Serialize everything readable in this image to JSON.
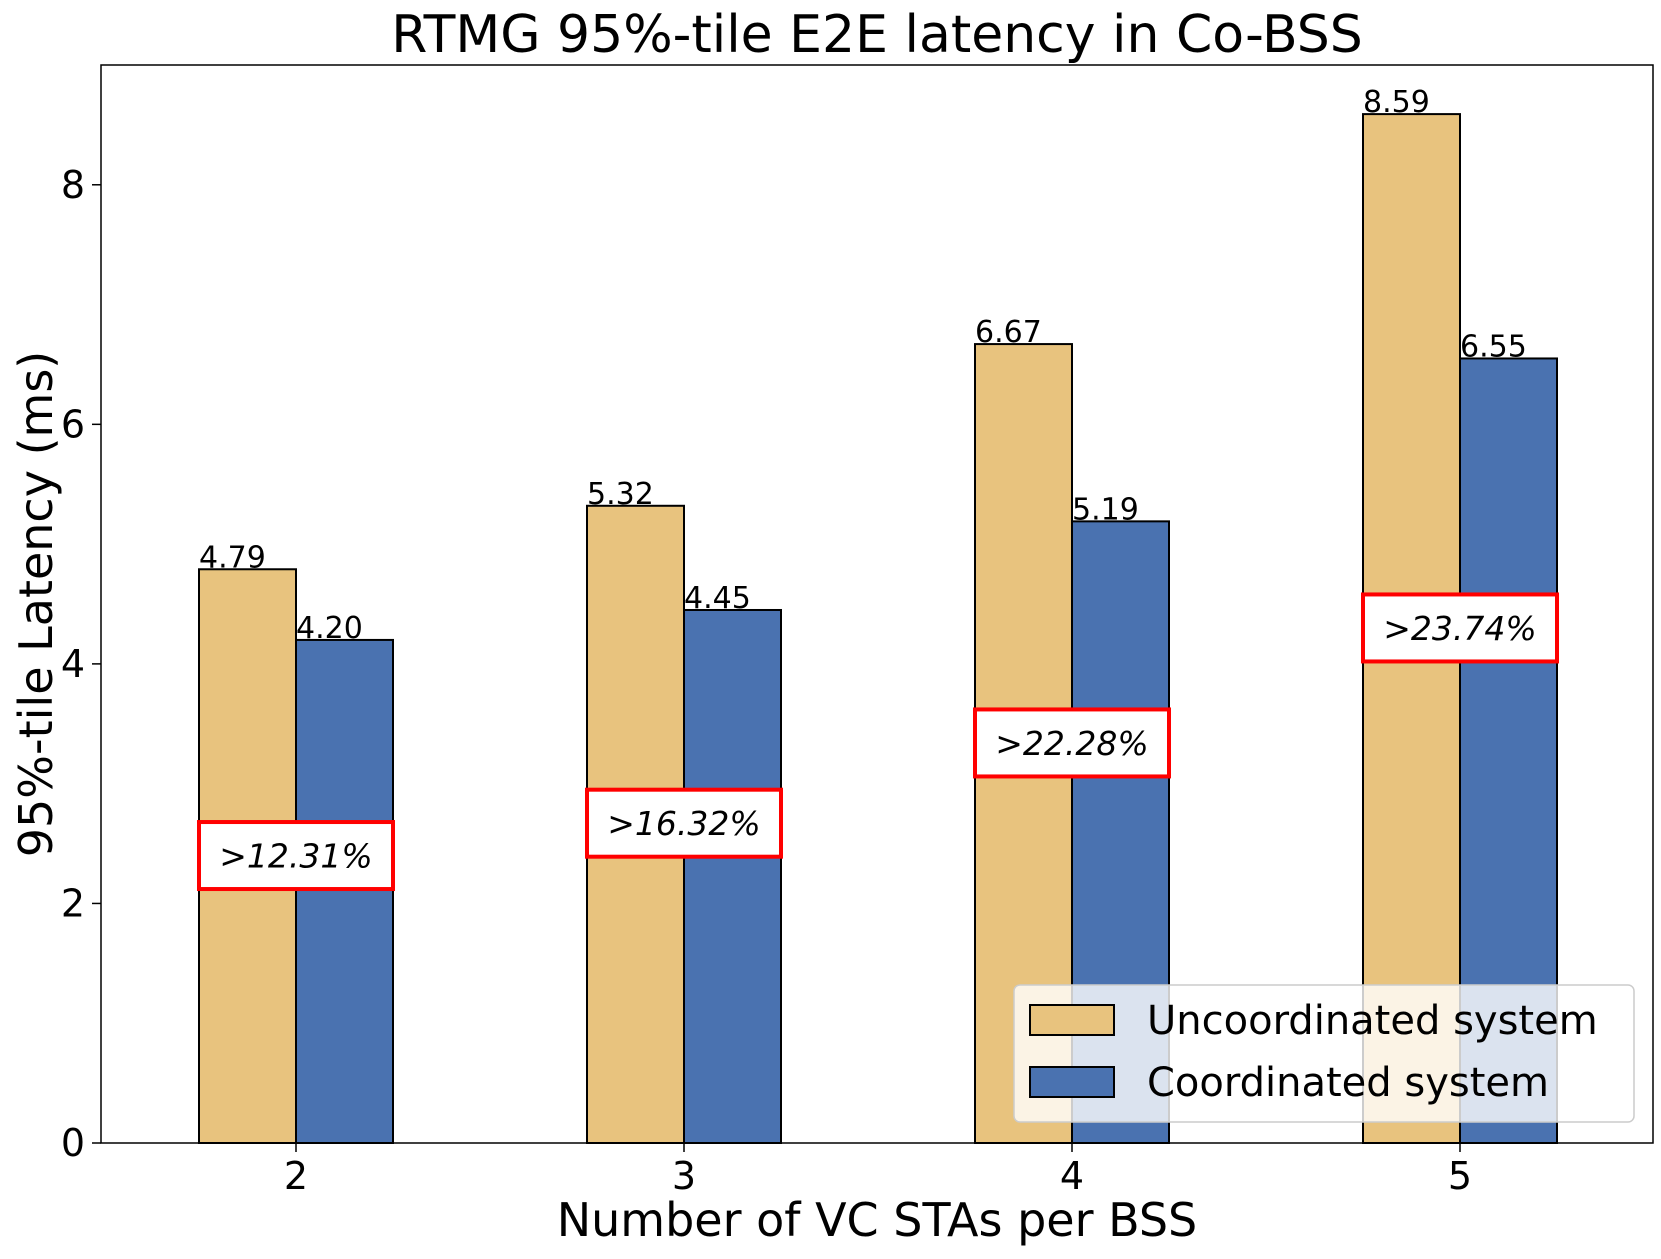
{
  "chart_data": {
    "type": "bar",
    "title": "RTMG 95%-tile E2E latency in Co-BSS",
    "xlabel": "Number of VC STAs per BSS",
    "ylabel": "95%-tile Latency (ms)",
    "categories": [
      "2",
      "3",
      "4",
      "5"
    ],
    "ylim": [
      0,
      9
    ],
    "yticks": [
      0,
      2,
      4,
      6,
      8
    ],
    "series": [
      {
        "name": "Uncoordinated system",
        "color": "#E8C37E",
        "values": [
          4.79,
          5.32,
          6.67,
          8.59
        ],
        "labels": [
          "4.79",
          "5.32",
          "6.67",
          "8.59"
        ]
      },
      {
        "name": "Coordinated system",
        "color": "#4A72B0",
        "values": [
          4.2,
          4.45,
          5.19,
          6.55
        ],
        "labels": [
          "4.20",
          "4.45",
          "5.19",
          "6.55"
        ]
      }
    ],
    "annotations": [
      {
        "text": ">12.31%",
        "y": 2.4
      },
      {
        "text": ">16.32%",
        "y": 2.67
      },
      {
        "text": ">22.28%",
        "y": 3.34
      },
      {
        "text": ">23.74%",
        "y": 4.3
      }
    ],
    "annotation_color": "#FF0000",
    "legend_placement": "lower-right"
  }
}
